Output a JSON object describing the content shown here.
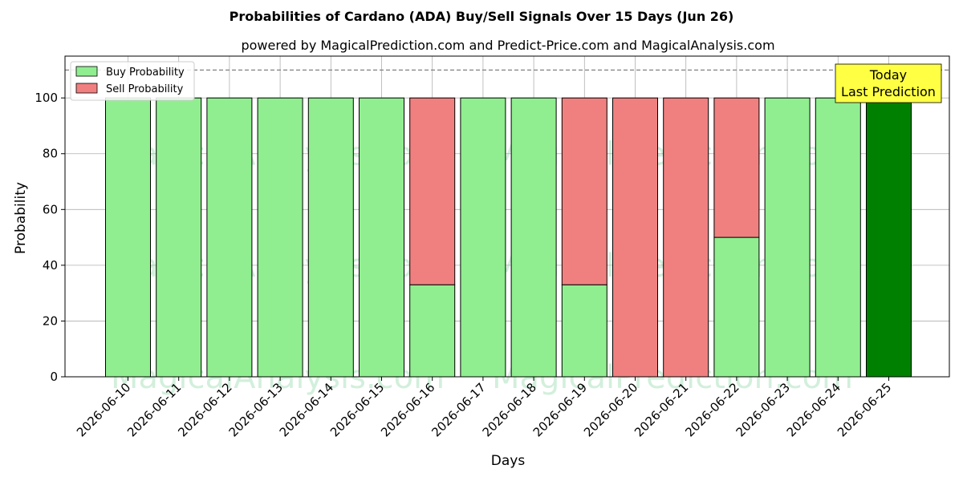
{
  "chart_data": {
    "type": "bar",
    "title": "Probabilities of Cardano (ADA) Buy/Sell Signals Over 15 Days (Jun 26)",
    "subtitle": "powered by MagicalPrediction.com and Predict-Price.com and MagicalAnalysis.com",
    "xlabel": "Days",
    "ylabel": "Probability",
    "ylim": [
      0,
      115
    ],
    "yticks": [
      0,
      20,
      40,
      60,
      80,
      100
    ],
    "threshold_line": 110,
    "grid": true,
    "legend_position": "top-left",
    "categories": [
      "2026-06-10",
      "2026-06-11",
      "2026-06-12",
      "2026-06-13",
      "2026-06-14",
      "2026-06-15",
      "2026-06-16",
      "2026-06-17",
      "2026-06-18",
      "2026-06-19",
      "2026-06-20",
      "2026-06-21",
      "2026-06-22",
      "2026-06-23",
      "2026-06-24",
      "2026-06-25"
    ],
    "series": [
      {
        "name": "Buy Probability",
        "color": "#90ee90",
        "values": [
          100,
          100,
          100,
          100,
          100,
          100,
          33,
          100,
          100,
          33,
          0,
          0,
          50,
          100,
          100,
          100
        ]
      },
      {
        "name": "Sell Probability",
        "color": "#f08080",
        "values": [
          0,
          0,
          0,
          0,
          0,
          0,
          67,
          0,
          0,
          67,
          100,
          100,
          50,
          0,
          0,
          0
        ]
      }
    ],
    "highlight": {
      "index": 15,
      "color": "#008000"
    },
    "annotation": {
      "line1": "Today",
      "line2": "Last Prediction",
      "color": "#ffff44"
    },
    "watermarks": [
      "MagicalAnalysis.com",
      "MagicalPrediction.com"
    ]
  }
}
